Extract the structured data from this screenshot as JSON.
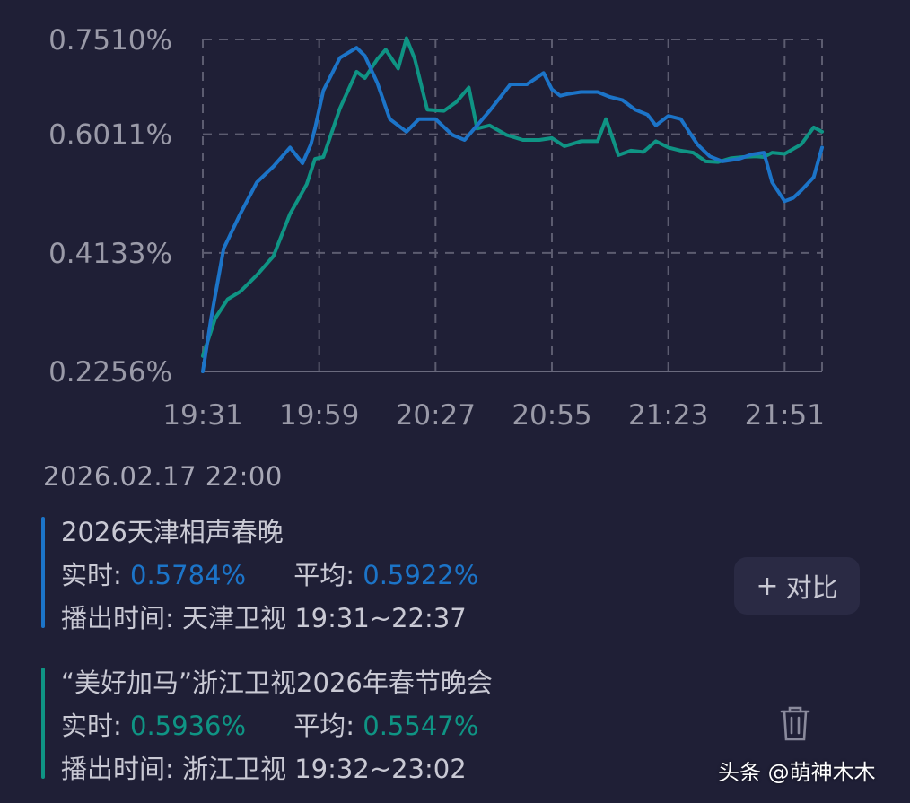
{
  "chart_data": {
    "type": "line",
    "x_ticks": [
      "19:31",
      "19:59",
      "20:27",
      "20:55",
      "21:23",
      "21:51"
    ],
    "x_range": [
      "19:31",
      "22:00"
    ],
    "y_ticks": [
      "0.7510%",
      "0.6011%",
      "0.4133%",
      "0.2256%"
    ],
    "y_tick_values": [
      0.751,
      0.6011,
      0.4133,
      0.2256
    ],
    "ylim": [
      0.2256,
      0.751
    ],
    "grid": true,
    "series": [
      {
        "name": "2026天津相声春晚",
        "color": "#1c74c8",
        "x": [
          "19:31",
          "19:33",
          "19:36",
          "19:40",
          "19:44",
          "19:48",
          "19:52",
          "19:55",
          "19:57",
          "19:58",
          "20:00",
          "20:04",
          "20:08",
          "20:10",
          "20:13",
          "20:16",
          "20:20",
          "20:23",
          "20:27",
          "20:31",
          "20:34",
          "20:37",
          "20:40",
          "20:45",
          "20:49",
          "20:53",
          "20:55",
          "20:57",
          "20:59",
          "21:02",
          "21:06",
          "21:09",
          "21:12",
          "21:15",
          "21:18",
          "21:20",
          "21:23",
          "21:26",
          "21:30",
          "21:33",
          "21:36",
          "21:40",
          "21:43",
          "21:46",
          "21:48",
          "21:51",
          "21:53",
          "21:55",
          "21:58",
          "22:00"
        ],
        "values": [
          0.2256,
          0.31,
          0.42,
          0.475,
          0.525,
          0.55,
          0.58,
          0.555,
          0.585,
          0.61,
          0.67,
          0.722,
          0.738,
          0.725,
          0.682,
          0.625,
          0.605,
          0.625,
          0.625,
          0.6,
          0.592,
          0.615,
          0.638,
          0.68,
          0.68,
          0.698,
          0.672,
          0.662,
          0.665,
          0.668,
          0.668,
          0.66,
          0.655,
          0.64,
          0.632,
          0.615,
          0.63,
          0.625,
          0.585,
          0.566,
          0.558,
          0.562,
          0.569,
          0.572,
          0.525,
          0.495,
          0.5,
          0.512,
          0.533,
          0.58
        ]
      },
      {
        "name": "“美好加马”浙江卫视2026年春节晚会",
        "color": "#0f9484",
        "x": [
          "19:31",
          "19:34",
          "19:37",
          "19:40",
          "19:44",
          "19:48",
          "19:52",
          "19:56",
          "19:58",
          "20:00",
          "20:04",
          "20:08",
          "20:10",
          "20:13",
          "20:15",
          "20:18",
          "20:20",
          "20:22",
          "20:25",
          "20:29",
          "20:32",
          "20:35",
          "20:37",
          "20:40",
          "20:44",
          "20:48",
          "20:52",
          "20:55",
          "20:58",
          "21:02",
          "21:06",
          "21:08",
          "21:11",
          "21:14",
          "21:17",
          "21:20",
          "21:23",
          "21:26",
          "21:29",
          "21:32",
          "21:35",
          "21:38",
          "21:41",
          "21:44",
          "21:46",
          "21:48",
          "21:51",
          "21:55",
          "21:58",
          "22:00"
        ],
        "values": [
          0.25,
          0.31,
          0.34,
          0.352,
          0.378,
          0.408,
          0.475,
          0.522,
          0.562,
          0.565,
          0.642,
          0.7,
          0.69,
          0.72,
          0.735,
          0.705,
          0.753,
          0.72,
          0.64,
          0.638,
          0.652,
          0.675,
          0.61,
          0.615,
          0.6,
          0.592,
          0.592,
          0.595,
          0.582,
          0.59,
          0.59,
          0.625,
          0.568,
          0.575,
          0.573,
          0.59,
          0.58,
          0.575,
          0.572,
          0.558,
          0.557,
          0.563,
          0.565,
          0.566,
          0.565,
          0.572,
          0.57,
          0.585,
          0.612,
          0.605
        ]
      }
    ]
  },
  "timestamp": "2026.02.17 22:00",
  "programs": [
    {
      "name": "2026天津相声春晚",
      "realtime_label": "实时:",
      "realtime_value": "0.5784%",
      "average_label": "平均:",
      "average_value": "0.5922%",
      "airtime_label": "播出时间:",
      "airtime_value": "天津卫视 19:31~22:37",
      "color": "#1c74c8"
    },
    {
      "name": "“美好加马”浙江卫视2026年春节晚会",
      "realtime_label": "实时:",
      "realtime_value": "0.5936%",
      "average_label": "平均:",
      "average_value": "0.5547%",
      "airtime_label": "播出时间:",
      "airtime_value": "浙江卫视 19:32~23:02",
      "color": "#0f9484"
    }
  ],
  "compare_button": {
    "plus": "+",
    "label": "对比"
  },
  "icons": {
    "delete": "trash-icon"
  },
  "watermark": {
    "prefix": "头条",
    "handle": "@萌神木木"
  }
}
